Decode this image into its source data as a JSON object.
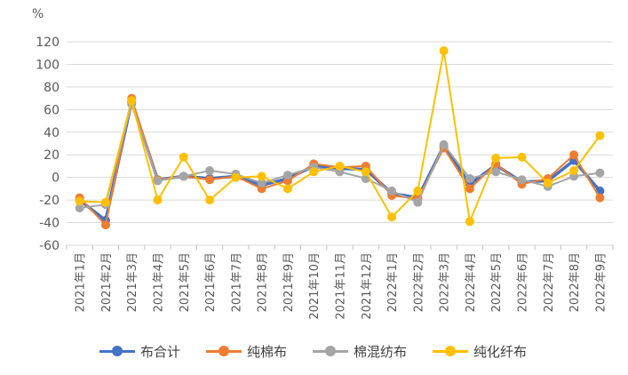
{
  "chart_data": {
    "type": "line",
    "unit": "%",
    "categories": [
      "2021年1月",
      "2021年2月",
      "2021年3月",
      "2021年4月",
      "2021年5月",
      "2021年6月",
      "2021年7月",
      "2021年8月",
      "2021年9月",
      "2021年10月",
      "2021年11月",
      "2021年12月",
      "2022年1月",
      "2022年2月",
      "2022年3月",
      "2022年4月",
      "2022年5月",
      "2022年6月",
      "2022年7月",
      "2022年8月",
      "2022年9月"
    ],
    "ylim": [
      -60,
      120
    ],
    "yticks": [
      -60,
      -40,
      -20,
      0,
      20,
      40,
      60,
      80,
      100,
      120
    ],
    "grid": true,
    "legend_position": "bottom",
    "series": [
      {
        "name": "布合计",
        "color": "#4472C4",
        "values": [
          -20,
          -38,
          67,
          -2,
          1,
          -1,
          1,
          -7,
          -1,
          10,
          8,
          7,
          -14,
          -18,
          28,
          -6,
          11,
          -4,
          -3,
          15,
          -12
        ]
      },
      {
        "name": "纯棉布",
        "color": "#ED7D31",
        "values": [
          -18,
          -42,
          70,
          -2,
          1,
          -2,
          1,
          -10,
          -3,
          12,
          9,
          10,
          -16,
          -19,
          26,
          -10,
          12,
          -6,
          -1,
          20,
          -18
        ]
      },
      {
        "name": "棉混纺布",
        "color": "#A5A5A5",
        "values": [
          -27,
          -24,
          65,
          -3,
          1,
          6,
          3,
          -5,
          2,
          9,
          5,
          -1,
          -12,
          -22,
          29,
          -1,
          5,
          -2,
          -8,
          1,
          4
        ]
      },
      {
        "name": "纯化纤布",
        "color": "#FFC000",
        "values": [
          -21,
          -22,
          68,
          -20,
          18,
          -20,
          0,
          1,
          -10,
          5,
          10,
          5,
          -35,
          -12,
          112,
          -39,
          17,
          18,
          -5,
          6,
          37
        ]
      }
    ]
  }
}
